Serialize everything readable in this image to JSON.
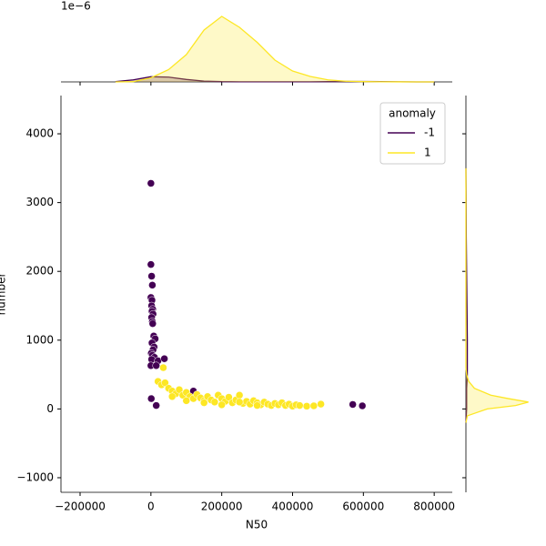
{
  "chart_data": [
    {
      "type": "scatter",
      "xlabel": "N50",
      "ylabel": "number",
      "xlim": [
        -254000,
        851000
      ],
      "ylim": [
        -1212,
        4556
      ],
      "xticks": [
        {
          "value": -200000,
          "label": "−200000"
        },
        0,
        200000,
        400000,
        600000,
        800000
      ],
      "yticks": [
        {
          "value": -1000,
          "label": "−1000"
        },
        0,
        1000,
        2000,
        3000,
        4000
      ],
      "legend_title": "anomaly",
      "legend": "upper right",
      "series": [
        {
          "name": "-1",
          "color": "#440154",
          "x": [
            0,
            0,
            2000,
            4000,
            0,
            3000,
            2000,
            5000,
            3000,
            6000,
            2000,
            4000,
            5000,
            8000,
            12000,
            3000,
            9000,
            6000,
            1000,
            4000,
            10000,
            2000,
            20000,
            38000,
            0,
            15000,
            1000,
            15000,
            570000,
            597000,
            120000
          ],
          "y": [
            3280,
            2100,
            1930,
            1800,
            1620,
            1580,
            1500,
            1450,
            1420,
            1380,
            1330,
            1270,
            1240,
            1060,
            1020,
            960,
            900,
            860,
            810,
            780,
            750,
            720,
            700,
            730,
            630,
            630,
            150,
            50,
            65,
            45,
            260
          ]
        },
        {
          "name": "1",
          "color": "#fde725",
          "x": [
            20000,
            30000,
            40000,
            50000,
            60000,
            70000,
            80000,
            90000,
            100000,
            110000,
            120000,
            130000,
            140000,
            150000,
            160000,
            170000,
            180000,
            190000,
            200000,
            210000,
            220000,
            230000,
            240000,
            250000,
            260000,
            270000,
            280000,
            290000,
            300000,
            310000,
            320000,
            330000,
            340000,
            350000,
            360000,
            370000,
            380000,
            390000,
            400000,
            410000,
            420000,
            440000,
            460000,
            480000,
            35000,
            100000,
            150000,
            200000,
            250000,
            300000,
            60000
          ],
          "y": [
            400,
            350,
            380,
            300,
            260,
            220,
            280,
            200,
            240,
            180,
            150,
            210,
            160,
            120,
            180,
            130,
            100,
            200,
            150,
            110,
            170,
            90,
            130,
            200,
            80,
            110,
            70,
            120,
            90,
            60,
            100,
            70,
            50,
            80,
            60,
            90,
            50,
            70,
            40,
            60,
            50,
            40,
            45,
            70,
            600,
            120,
            90,
            60,
            100,
            50,
            180
          ]
        }
      ]
    },
    {
      "type": "kde",
      "offset_label": "1e−6",
      "ylim": [
        0,
        6
      ],
      "x": [
        -100000,
        -50000,
        0,
        50000,
        100000,
        150000,
        200000,
        250000,
        300000,
        350000,
        400000,
        450000,
        500000,
        550000,
        600000,
        650000,
        700000,
        750000,
        800000
      ],
      "series": [
        {
          "name": "-1",
          "color": "#440154",
          "values": [
            0.02,
            0.15,
            0.38,
            0.35,
            0.18,
            0.06,
            0.02,
            0.01,
            0.01,
            0.01,
            0.01,
            0.01,
            0.02,
            0.03,
            0.03,
            0.02,
            0.01,
            0,
            0
          ]
        },
        {
          "name": "1",
          "color": "#fde725",
          "values": [
            0,
            0.02,
            0.3,
            0.9,
            2.0,
            3.8,
            4.8,
            4.0,
            2.9,
            1.6,
            0.8,
            0.4,
            0.15,
            0.05,
            0.02,
            0.01,
            0.005,
            0,
            0
          ]
        }
      ]
    },
    {
      "type": "kde",
      "orientation": "horizontal",
      "xlim": [
        0,
        0.01
      ],
      "y": [
        -200,
        -100,
        0,
        50,
        100,
        150,
        200,
        300,
        400,
        500,
        600,
        800,
        1000,
        1500,
        2000,
        2500,
        3000,
        3500
      ],
      "series": [
        {
          "name": "-1",
          "color": "#440154",
          "values": [
            0,
            5e-05,
            0.0001,
            0.0001,
            0.0001,
            0.0001,
            0.0001,
            0.0001,
            0.00015,
            0.0002,
            0.0002,
            0.0002,
            0.0002,
            0.00015,
            0.0001,
            5e-05,
            3e-05,
            0
          ]
        },
        {
          "name": "1",
          "color": "#fde725",
          "values": [
            0,
            0.0002,
            0.003,
            0.007,
            0.0088,
            0.006,
            0.0035,
            0.0012,
            0.0004,
            0.0001,
            0,
            0,
            0,
            0,
            0,
            0,
            0,
            0
          ]
        }
      ]
    }
  ]
}
